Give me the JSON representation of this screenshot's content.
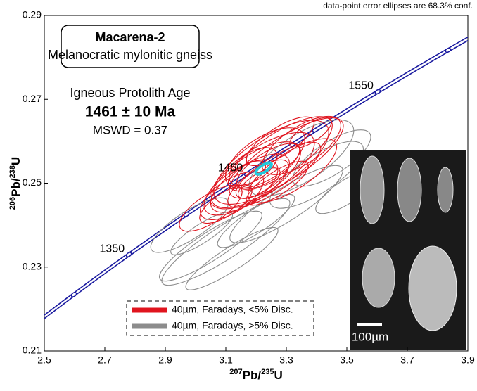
{
  "chart_data": {
    "type": "concordia",
    "note_top": "data-point error ellipses are 68.3% conf.",
    "title": "Macarena-2",
    "subtitle": "Melanocratic mylonitic gneiss",
    "annotation": [
      "Igneous Protolith Age",
      "1461 ± 10 Ma",
      "MSWD = 0.37"
    ],
    "xlabel_parts": [
      "207",
      "Pb/",
      "235",
      "U"
    ],
    "ylabel_parts": [
      "206",
      "Pb/",
      "238",
      "U"
    ],
    "xlim": [
      2.5,
      3.9
    ],
    "xticks": [
      2.5,
      2.7,
      2.9,
      3.1,
      3.3,
      3.5,
      3.7,
      3.9
    ],
    "ylim": [
      0.21,
      0.29
    ],
    "yticks": [
      0.21,
      0.23,
      0.25,
      0.27,
      0.29
    ],
    "concordia": {
      "color": "#1a1aa0",
      "marker_ages": [
        1300,
        1350,
        1400,
        1450,
        1500,
        1550,
        1600
      ],
      "age_labels": [
        1350,
        1450,
        1550
      ]
    },
    "concordia_age": {
      "color": "#22c8dc",
      "x": 3.225,
      "y": 0.2535,
      "xerr": 0.03,
      "yerr": 0.0015
    },
    "series": [
      {
        "name": "40µm, Faradays, >5% Disc.",
        "color": "#8c8c8c",
        "x": [
          3.05,
          3.1,
          2.98,
          3.2,
          3.3,
          3.4,
          3.45,
          3.5,
          3.12,
          3.35,
          3.02
        ],
        "y": [
          0.235,
          0.236,
          0.24,
          0.241,
          0.245,
          0.252,
          0.256,
          0.248,
          0.232,
          0.256,
          0.238
        ],
        "xerr": [
          0.2,
          0.25,
          0.15,
          0.15,
          0.22,
          0.18,
          0.15,
          0.12,
          0.18,
          0.2,
          0.12
        ],
        "yerr": [
          0.006,
          0.007,
          0.006,
          0.005,
          0.007,
          0.008,
          0.007,
          0.005,
          0.005,
          0.01,
          0.004
        ]
      },
      {
        "name": "40µm, Faradays, <5% Disc.",
        "color": "#e0141e",
        "x": [
          3.22,
          3.25,
          3.2,
          3.28,
          3.18,
          3.3,
          3.15,
          3.24,
          3.12,
          3.35,
          3.22,
          3.26,
          3.19,
          3.1,
          3.32,
          3.21,
          3.28,
          3.23,
          3.05,
          3.27,
          3.38,
          3.17
        ],
        "y": [
          0.253,
          0.255,
          0.252,
          0.257,
          0.25,
          0.256,
          0.249,
          0.254,
          0.247,
          0.259,
          0.251,
          0.252,
          0.254,
          0.245,
          0.253,
          0.25,
          0.26,
          0.256,
          0.244,
          0.25,
          0.262,
          0.252
        ],
        "xerr": [
          0.2,
          0.22,
          0.17,
          0.2,
          0.15,
          0.22,
          0.14,
          0.12,
          0.12,
          0.15,
          0.1,
          0.18,
          0.09,
          0.1,
          0.17,
          0.08,
          0.13,
          0.15,
          0.12,
          0.12,
          0.08,
          0.07
        ],
        "yerr": [
          0.01,
          0.011,
          0.009,
          0.009,
          0.008,
          0.009,
          0.008,
          0.006,
          0.007,
          0.008,
          0.005,
          0.007,
          0.006,
          0.005,
          0.008,
          0.004,
          0.006,
          0.009,
          0.006,
          0.005,
          0.004,
          0.004
        ]
      }
    ],
    "scale_bar_label": "100µm"
  }
}
